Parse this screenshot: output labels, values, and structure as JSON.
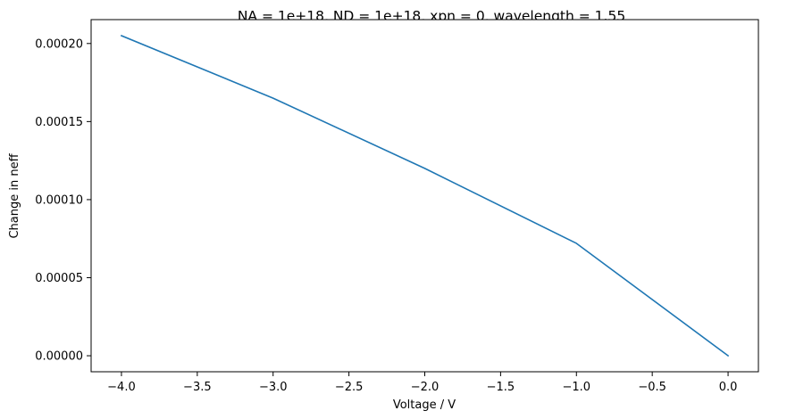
{
  "chart_data": {
    "type": "line",
    "title": "NA = 1e+18, ND = 1e+18, xpn = 0, wavelength = 1.55",
    "xlabel": "Voltage / V",
    "ylabel": "Change in neff",
    "xlim": [
      -4.2,
      0.2
    ],
    "ylim": [
      -1.025e-05,
      0.0002153
    ],
    "grid": false,
    "legend": "none",
    "xticks": [
      -4.0,
      -3.5,
      -3.0,
      -2.5,
      -2.0,
      -1.5,
      -1.0,
      -0.5,
      0.0
    ],
    "xtick_labels": [
      "−4.0",
      "−3.5",
      "−3.0",
      "−2.5",
      "−2.0",
      "−1.5",
      "−1.0",
      "−0.5",
      "0.0"
    ],
    "yticks": [
      0.0,
      5e-05,
      0.0001,
      0.00015,
      0.0002
    ],
    "ytick_labels": [
      "0.00000",
      "0.00005",
      "0.00010",
      "0.00015",
      "0.00020"
    ],
    "series": [
      {
        "x": [
          -4.0,
          -3.0,
          -2.0,
          -1.0,
          0.0
        ],
        "y": [
          0.000205,
          0.000165,
          0.00012,
          7.2e-05,
          0.0
        ],
        "color": "#1f77b4"
      }
    ]
  }
}
